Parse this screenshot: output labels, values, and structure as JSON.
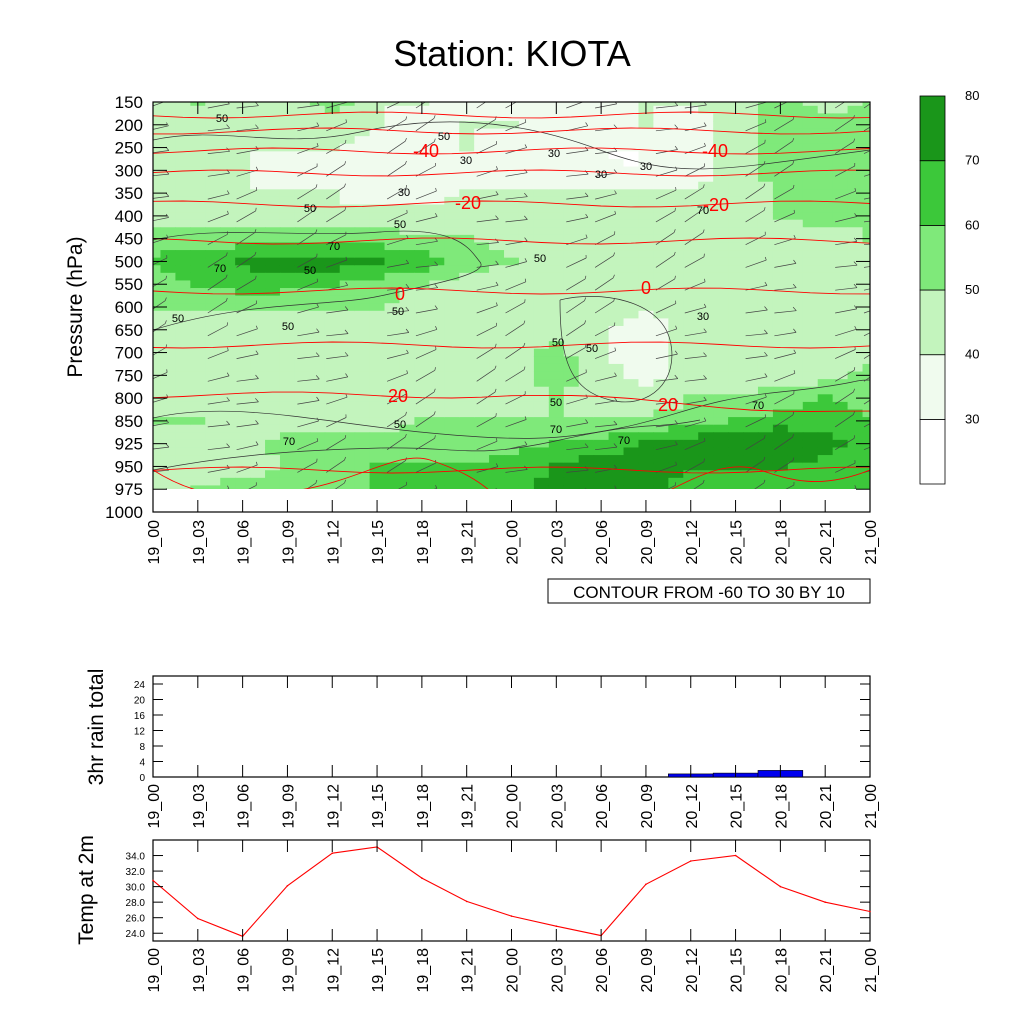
{
  "title": "Station: KIOTA",
  "colors": {
    "shade": [
      "#ffffff",
      "#f0fbee",
      "#c3f4bd",
      "#7fe97a",
      "#3cc83a",
      "#1a961a"
    ],
    "temp_line": "#ff0000",
    "rain_bar": "#0000ee",
    "axis": "#000000",
    "contour": "#333333"
  },
  "chart_data": [
    {
      "type": "heatmap",
      "name": "pressure-time cross section (relative humidity shading, temperature contours, wind barbs)",
      "ylabel": "Pressure (hPa)",
      "y_ticks": [
        150,
        200,
        250,
        300,
        350,
        400,
        450,
        500,
        550,
        600,
        650,
        700,
        750,
        800,
        850,
        925,
        950,
        975,
        1000
      ],
      "x_ticks": [
        "19_00",
        "19_03",
        "19_06",
        "19_09",
        "19_12",
        "19_15",
        "19_18",
        "19_21",
        "20_00",
        "20_03",
        "20_06",
        "20_09",
        "20_12",
        "20_15",
        "20_18",
        "20_21",
        "21_00"
      ],
      "contour_info": "CONTOUR FROM -60 TO 30 BY 10",
      "colorbar": {
        "levels": [
          30,
          40,
          50,
          60,
          70,
          80
        ]
      },
      "rh_field": [
        [
          40,
          50,
          45,
          40,
          55,
          40,
          40,
          35,
          35,
          35,
          35,
          40,
          40,
          45,
          55,
          45,
          50
        ],
        [
          40,
          45,
          45,
          45,
          45,
          40,
          35,
          40,
          40,
          30,
          30,
          40,
          35,
          45,
          55,
          55,
          55
        ],
        [
          40,
          40,
          40,
          40,
          40,
          35,
          35,
          40,
          35,
          35,
          30,
          30,
          35,
          45,
          55,
          55,
          55
        ],
        [
          40,
          40,
          40,
          35,
          35,
          30,
          35,
          35,
          35,
          30,
          30,
          30,
          35,
          45,
          55,
          55,
          55
        ],
        [
          40,
          40,
          40,
          40,
          40,
          30,
          35,
          40,
          40,
          40,
          40,
          40,
          40,
          45,
          50,
          50,
          50
        ],
        [
          45,
          45,
          45,
          45,
          45,
          45,
          45,
          45,
          40,
          40,
          40,
          40,
          40,
          45,
          50,
          55,
          50
        ],
        [
          55,
          55,
          55,
          55,
          55,
          55,
          50,
          50,
          45,
          45,
          45,
          45,
          45,
          45,
          45,
          45,
          50
        ],
        [
          62,
          65,
          72,
          75,
          75,
          70,
          65,
          55,
          50,
          45,
          45,
          45,
          45,
          45,
          45,
          45,
          45
        ],
        [
          55,
          60,
          65,
          65,
          60,
          55,
          50,
          45,
          45,
          45,
          45,
          45,
          45,
          45,
          45,
          45,
          45
        ],
        [
          52,
          52,
          52,
          50,
          50,
          50,
          45,
          45,
          45,
          45,
          45,
          40,
          45,
          45,
          45,
          45,
          45
        ],
        [
          45,
          45,
          45,
          45,
          45,
          45,
          45,
          45,
          45,
          45,
          40,
          35,
          45,
          45,
          45,
          45,
          45
        ],
        [
          45,
          45,
          45,
          45,
          40,
          40,
          40,
          45,
          45,
          55,
          40,
          35,
          45,
          45,
          45,
          45,
          45
        ],
        [
          45,
          45,
          45,
          45,
          40,
          40,
          40,
          45,
          45,
          55,
          45,
          35,
          45,
          45,
          45,
          45,
          55
        ],
        [
          45,
          45,
          45,
          45,
          45,
          40,
          40,
          40,
          45,
          50,
          45,
          45,
          50,
          50,
          55,
          60,
          55
        ],
        [
          50,
          50,
          45,
          45,
          45,
          45,
          50,
          50,
          50,
          50,
          50,
          50,
          55,
          60,
          65,
          65,
          60
        ],
        [
          45,
          45,
          45,
          55,
          55,
          55,
          55,
          55,
          55,
          60,
          65,
          70,
          75,
          80,
          80,
          75,
          65
        ],
        [
          40,
          40,
          45,
          50,
          55,
          60,
          60,
          60,
          65,
          70,
          75,
          75,
          70,
          70,
          70,
          65,
          60
        ],
        [
          45,
          50,
          55,
          55,
          55,
          60,
          60,
          60,
          65,
          75,
          80,
          75,
          65,
          60,
          60,
          60,
          65
        ],
        [
          30,
          30,
          30,
          30,
          30,
          30,
          30,
          30,
          30,
          30,
          30,
          30,
          30,
          30,
          30,
          30,
          30
        ]
      ],
      "temperature_contours": [
        {
          "value": -40,
          "label": "-40"
        },
        {
          "value": -20,
          "label": "-20"
        },
        {
          "value": 0,
          "label": "0"
        },
        {
          "value": 20,
          "label": "20"
        }
      ],
      "rh_contour_labels": [
        "50",
        "50",
        "30",
        "30",
        "30",
        "30",
        "30",
        "50",
        "50",
        "70",
        "70",
        "70",
        "50",
        "50",
        "50",
        "50",
        "50",
        "30",
        "50",
        "50",
        "50",
        "50",
        "70",
        "70",
        "70",
        "70"
      ]
    },
    {
      "type": "bar",
      "name": "3hr rain total",
      "ylabel": "3hr rain total",
      "categories": [
        "19_00",
        "19_03",
        "19_06",
        "19_09",
        "19_12",
        "19_15",
        "19_18",
        "19_21",
        "20_00",
        "20_03",
        "20_06",
        "20_09",
        "20_12",
        "20_15",
        "20_18",
        "20_21",
        "21_00"
      ],
      "values": [
        0,
        0,
        0,
        0,
        0,
        0,
        0,
        0,
        0,
        0,
        0,
        0,
        0.8,
        1.0,
        1.7,
        0.05,
        0
      ],
      "y_ticks": [
        "0",
        "4",
        "8",
        "12",
        "16",
        "20",
        "24"
      ],
      "ylim": [
        0,
        24
      ]
    },
    {
      "type": "line",
      "name": "Temp at 2m",
      "ylabel": "Temp at 2m",
      "categories": [
        "19_00",
        "19_03",
        "19_06",
        "19_09",
        "19_12",
        "19_15",
        "19_18",
        "19_21",
        "20_00",
        "20_03",
        "20_06",
        "20_09",
        "20_12",
        "20_15",
        "20_18",
        "20_21",
        "21_00"
      ],
      "values": [
        30.8,
        25.9,
        23.6,
        30.1,
        34.3,
        35.1,
        31.1,
        28.1,
        26.2,
        24.9,
        23.7,
        30.3,
        33.3,
        34.0,
        30.0,
        28.0,
        26.8
      ],
      "y_ticks": [
        "24.0",
        "26.0",
        "28.0",
        "30.0",
        "32.0",
        "34.0"
      ],
      "ylim": [
        23.0,
        36.0
      ]
    }
  ]
}
